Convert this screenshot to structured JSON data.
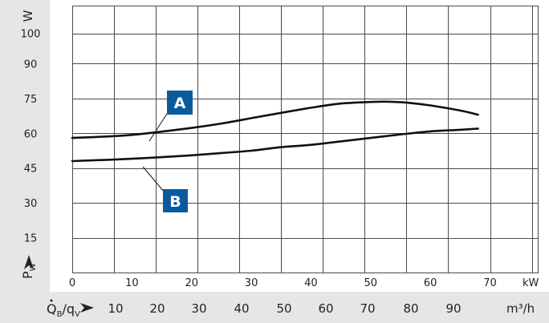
{
  "chart_data": {
    "type": "line",
    "xlabel": "kW",
    "ylabel": "W",
    "y_axis_symbol": "P",
    "y_axis_subscript": "W",
    "xlim": [
      0,
      78
    ],
    "ylim": [
      0,
      115
    ],
    "x_ticks": [
      0,
      10,
      20,
      30,
      40,
      50,
      60,
      70
    ],
    "y_ticks": [
      15,
      30,
      45,
      60,
      75,
      90,
      100
    ],
    "y_gridlines": [
      15,
      30,
      45,
      60,
      75,
      90,
      103
    ],
    "x_gridlines": [
      0,
      7,
      14,
      21,
      28,
      35,
      42,
      49,
      56,
      63,
      70,
      77
    ],
    "grid": true,
    "secondary_x_axis": {
      "label_symbol": "Q",
      "label_sub1": "B",
      "label_mid": "/q",
      "label_sub2": "V",
      "unit": "m³/h",
      "ticks": [
        "10",
        "20",
        "30",
        "40",
        "50",
        "60",
        "70",
        "80",
        "90"
      ]
    },
    "series": [
      {
        "name": "A",
        "x": [
          0,
          5,
          10,
          15,
          20,
          25,
          30,
          35,
          40,
          45,
          50,
          53,
          56,
          60,
          65,
          68
        ],
        "y": [
          58,
          58.5,
          59.3,
          60.7,
          62.3,
          64.2,
          66.5,
          68.8,
          71,
          72.8,
          73.5,
          73.6,
          73.2,
          72,
          69.8,
          68
        ]
      },
      {
        "name": "B",
        "x": [
          0,
          10,
          20,
          25,
          30,
          35,
          40,
          45,
          50,
          55,
          60,
          65,
          68
        ],
        "y": [
          48,
          49,
          50.5,
          51.5,
          52.5,
          54,
          55,
          56.5,
          58,
          59.5,
          60.8,
          61.5,
          62
        ]
      }
    ]
  },
  "colors": {
    "badge": "#0a5a9e",
    "axis_band": "#e6e6e6",
    "grid": "#4a4a4a",
    "curve": "#111111"
  }
}
